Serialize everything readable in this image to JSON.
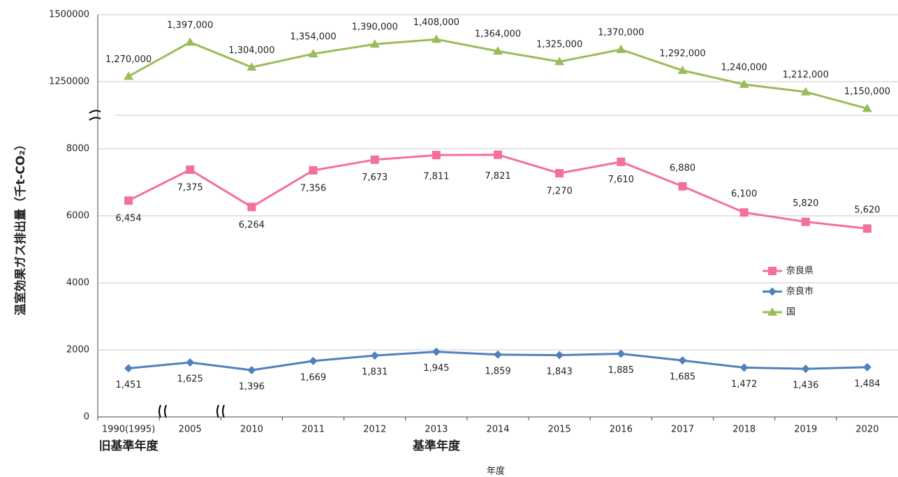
{
  "chart_data": {
    "type": "line",
    "xlabel": "年度",
    "ylabel": "温室効果ガス排出量（千t-CO₂）",
    "annotations": [
      "旧基準年度",
      "基準年度"
    ],
    "categories": [
      "1990(1995)",
      "2005",
      "2010",
      "2011",
      "2012",
      "2013",
      "2014",
      "2015",
      "2016",
      "2017",
      "2018",
      "2019",
      "2020"
    ],
    "ylim": [
      0,
      9000
    ],
    "yticks": [
      0,
      2000,
      4000,
      6000,
      8000
    ],
    "y2lim": [
      1125000,
      1500000
    ],
    "y2ticks": [
      1250000,
      1500000
    ],
    "grid": true,
    "legend": "right",
    "series": [
      {
        "name": "奈良県",
        "color": "#f36fa1",
        "marker": "square",
        "values": [
          6454,
          7375,
          6264,
          7356,
          7673,
          7811,
          7821,
          7270,
          7610,
          6880,
          6100,
          5820,
          5620
        ],
        "value_labels": [
          "6,454",
          "7,375",
          "6,264",
          "7,356",
          "7,673",
          "7,811",
          "7,821",
          "7,270",
          "7,610",
          "6,880",
          "6,100",
          "5,820",
          "5,620"
        ]
      },
      {
        "name": "奈良市",
        "color": "#4f81bd",
        "marker": "diamond",
        "values": [
          1451,
          1625,
          1396,
          1669,
          1831,
          1945,
          1859,
          1843,
          1885,
          1685,
          1472,
          1436,
          1484
        ],
        "value_labels": [
          "1,451",
          "1,625",
          "1,396",
          "1,669",
          "1,831",
          "1,945",
          "1,859",
          "1,843",
          "1,885",
          "1,685",
          "1,472",
          "1,436",
          "1,484"
        ]
      },
      {
        "name": "国",
        "color": "#9bbb59",
        "marker": "triangle",
        "axis": "y2",
        "values": [
          1270000,
          1397000,
          1304000,
          1354000,
          1390000,
          1408000,
          1364000,
          1325000,
          1370000,
          1292000,
          1240000,
          1212000,
          1150000
        ],
        "value_labels": [
          "1,270,000",
          "1,397,000",
          "1,304,000",
          "1,354,000",
          "1,390,000",
          "1,408,000",
          "1,364,000",
          "1,325,000",
          "1,370,000",
          "1,292,000",
          "1,240,000",
          "1,212,000",
          "1,150,000"
        ]
      }
    ]
  }
}
